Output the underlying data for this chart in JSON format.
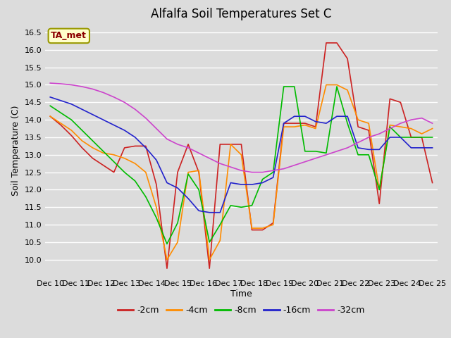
{
  "title": "Alfalfa Soil Temperatures Set C",
  "xlabel": "Time",
  "ylabel": "Soil Temperature (C)",
  "ylim": [
    9.5,
    16.75
  ],
  "yticks": [
    10.0,
    10.5,
    11.0,
    11.5,
    12.0,
    12.5,
    13.0,
    13.5,
    14.0,
    14.5,
    15.0,
    15.5,
    16.0,
    16.5
  ],
  "background_color": "#dcdcdc",
  "x_labels": [
    "Dec 10",
    "Dec 11",
    "Dec 12",
    "Dec 13",
    "Dec 14",
    "Dec 15",
    "Dec 16",
    "Dec 17",
    "Dec 18",
    "Dec 19",
    "Dec 20",
    "Dec 21",
    "Dec 22",
    "Dec 23",
    "Dec 24",
    "Dec 25"
  ],
  "series": {
    "-2cm": {
      "color": "#cc2222",
      "data": [
        14.1,
        13.85,
        13.55,
        13.2,
        12.9,
        12.7,
        12.5,
        13.2,
        13.25,
        13.25,
        12.15,
        9.75,
        12.5,
        13.3,
        12.5,
        9.75,
        13.3,
        13.3,
        13.3,
        10.85,
        10.85,
        11.05,
        13.9,
        13.9,
        13.9,
        13.8,
        16.2,
        16.2,
        15.75,
        13.8,
        13.7,
        11.6,
        14.6,
        14.5,
        13.5,
        13.5,
        12.2
      ]
    },
    "-4cm": {
      "color": "#ff8c00",
      "data": [
        14.1,
        13.9,
        13.7,
        13.4,
        13.2,
        13.05,
        13.0,
        12.9,
        12.75,
        12.5,
        11.5,
        10.0,
        10.5,
        12.5,
        12.55,
        10.0,
        10.55,
        13.3,
        13.0,
        10.9,
        10.9,
        11.0,
        13.8,
        13.8,
        13.85,
        13.75,
        15.0,
        15.0,
        14.85,
        14.0,
        13.9,
        12.0,
        13.85,
        13.8,
        13.75,
        13.6,
        13.75
      ]
    },
    "-8cm": {
      "color": "#00bb00",
      "data": [
        14.4,
        14.2,
        14.0,
        13.7,
        13.4,
        13.1,
        12.8,
        12.5,
        12.25,
        11.8,
        11.2,
        10.45,
        11.05,
        12.45,
        12.0,
        10.5,
        11.0,
        11.55,
        11.5,
        11.55,
        12.3,
        12.5,
        14.95,
        14.95,
        13.1,
        13.1,
        13.05,
        14.95,
        13.9,
        13.0,
        13.0,
        12.0,
        13.8,
        13.5,
        13.5,
        13.5,
        13.5
      ]
    },
    "-16cm": {
      "color": "#2222cc",
      "data": [
        14.65,
        14.55,
        14.45,
        14.3,
        14.15,
        14.0,
        13.85,
        13.7,
        13.5,
        13.2,
        12.85,
        12.2,
        12.05,
        11.75,
        11.4,
        11.35,
        11.35,
        12.2,
        12.15,
        12.15,
        12.2,
        12.35,
        13.9,
        14.1,
        14.1,
        13.95,
        13.9,
        14.1,
        14.1,
        13.2,
        13.15,
        13.15,
        13.5,
        13.5,
        13.2,
        13.2,
        13.2
      ]
    },
    "-32cm": {
      "color": "#cc44cc",
      "data": [
        15.05,
        15.03,
        15.0,
        14.95,
        14.88,
        14.78,
        14.65,
        14.5,
        14.3,
        14.05,
        13.75,
        13.45,
        13.3,
        13.2,
        13.05,
        12.9,
        12.75,
        12.65,
        12.55,
        12.5,
        12.5,
        12.55,
        12.6,
        12.7,
        12.8,
        12.9,
        13.0,
        13.1,
        13.2,
        13.35,
        13.5,
        13.6,
        13.75,
        13.9,
        14.0,
        14.05,
        13.9
      ]
    }
  },
  "legend_label": "TA_met",
  "title_fontsize": 12,
  "axis_fontsize": 9,
  "tick_fontsize": 8
}
